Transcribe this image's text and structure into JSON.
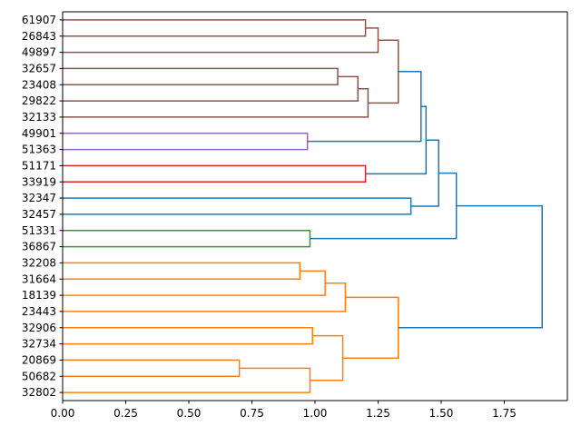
{
  "chart_data": {
    "type": "dendrogram",
    "orientation": "left",
    "title": "",
    "xlabel": "",
    "ylabel": "",
    "xlim": [
      0,
      2.0
    ],
    "xticks": [
      0.0,
      0.25,
      0.5,
      0.75,
      1.0,
      1.25,
      1.5,
      1.75
    ],
    "xtick_labels": [
      "0.00",
      "0.25",
      "0.50",
      "0.75",
      "1.00",
      "1.25",
      "1.50",
      "1.75"
    ],
    "leaves": [
      "61907",
      "26843",
      "49897",
      "32657",
      "23408",
      "29822",
      "32133",
      "49901",
      "51363",
      "51171",
      "33919",
      "32347",
      "32457",
      "51331",
      "36867",
      "32208",
      "31664",
      "18139",
      "23443",
      "32906",
      "32734",
      "20869",
      "50682",
      "32802"
    ],
    "colors": {
      "orange": "#ff7f0e",
      "green": "#2ca02c",
      "red": "#d62728",
      "purple": "#9467bd",
      "brown": "#8c564b",
      "blue": "#1f77b4"
    },
    "merges": [
      {
        "id": "N1",
        "a": "61907",
        "b": "26843",
        "distance": 1.2,
        "color": "brown"
      },
      {
        "id": "N2",
        "a": "N1",
        "b": "49897",
        "distance": 1.25,
        "color": "brown"
      },
      {
        "id": "N3",
        "a": "32657",
        "b": "23408",
        "distance": 1.09,
        "color": "brown"
      },
      {
        "id": "N4",
        "a": "N3",
        "b": "29822",
        "distance": 1.17,
        "color": "brown"
      },
      {
        "id": "N5",
        "a": "N4",
        "b": "32133",
        "distance": 1.21,
        "color": "brown"
      },
      {
        "id": "N6",
        "a": "N2",
        "b": "N5",
        "distance": 1.33,
        "color": "brown"
      },
      {
        "id": "N7",
        "a": "49901",
        "b": "51363",
        "distance": 0.97,
        "color": "purple"
      },
      {
        "id": "N8",
        "a": "N6",
        "b": "N7",
        "distance": 1.42,
        "color": "blue"
      },
      {
        "id": "N9",
        "a": "51171",
        "b": "33919",
        "distance": 1.2,
        "color": "red"
      },
      {
        "id": "N10",
        "a": "N8",
        "b": "N9",
        "distance": 1.44,
        "color": "blue"
      },
      {
        "id": "N11",
        "a": "32347",
        "b": "32457",
        "distance": 1.38,
        "color": "blue"
      },
      {
        "id": "N12",
        "a": "N10",
        "b": "N11",
        "distance": 1.49,
        "color": "blue"
      },
      {
        "id": "N13",
        "a": "51331",
        "b": "36867",
        "distance": 0.98,
        "color": "green"
      },
      {
        "id": "N14",
        "a": "N12",
        "b": "N13",
        "distance": 1.56,
        "color": "blue"
      },
      {
        "id": "N15",
        "a": "32208",
        "b": "31664",
        "distance": 0.94,
        "color": "orange"
      },
      {
        "id": "N16",
        "a": "N15",
        "b": "18139",
        "distance": 1.04,
        "color": "orange"
      },
      {
        "id": "N17",
        "a": "N16",
        "b": "23443",
        "distance": 1.12,
        "color": "orange"
      },
      {
        "id": "N18",
        "a": "32906",
        "b": "32734",
        "distance": 0.99,
        "color": "orange"
      },
      {
        "id": "N19",
        "a": "20869",
        "b": "50682",
        "distance": 0.7,
        "color": "orange"
      },
      {
        "id": "N20",
        "a": "N19",
        "b": "32802",
        "distance": 0.98,
        "color": "orange"
      },
      {
        "id": "N21",
        "a": "N18",
        "b": "N20",
        "distance": 1.11,
        "color": "orange"
      },
      {
        "id": "N22",
        "a": "N17",
        "b": "N21",
        "distance": 1.33,
        "color": "orange"
      },
      {
        "id": "N23",
        "a": "N14",
        "b": "N22",
        "distance": 1.9,
        "color": "blue"
      }
    ]
  }
}
